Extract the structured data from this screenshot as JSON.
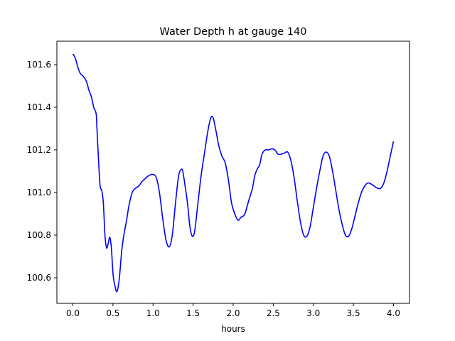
{
  "chart_data": {
    "type": "line",
    "title": "Water Depth h at gauge 140",
    "xlabel": "hours",
    "ylabel": "",
    "xlim": [
      -0.2,
      4.2
    ],
    "ylim": [
      100.48,
      101.71
    ],
    "xticks": [
      0.0,
      0.5,
      1.0,
      1.5,
      2.0,
      2.5,
      3.0,
      3.5,
      4.0
    ],
    "xtick_labels": [
      "0.0",
      "0.5",
      "1.0",
      "1.5",
      "2.0",
      "2.5",
      "3.0",
      "3.5",
      "4.0"
    ],
    "yticks": [
      100.6,
      100.8,
      101.0,
      101.2,
      101.4,
      101.6
    ],
    "ytick_labels": [
      "100.6",
      "100.8",
      "101.0",
      "101.2",
      "101.4",
      "101.6"
    ],
    "grid": false,
    "series": [
      {
        "color": "#0000ff",
        "x": [
          0.0,
          0.03,
          0.06,
          0.09,
          0.13,
          0.17,
          0.2,
          0.23,
          0.26,
          0.29,
          0.3,
          0.32,
          0.34,
          0.36,
          0.38,
          0.4,
          0.42,
          0.44,
          0.46,
          0.48,
          0.5,
          0.52,
          0.55,
          0.58,
          0.61,
          0.64,
          0.67,
          0.7,
          0.74,
          0.78,
          0.82,
          0.86,
          0.9,
          0.95,
          1.0,
          1.04,
          1.08,
          1.12,
          1.16,
          1.2,
          1.24,
          1.28,
          1.32,
          1.36,
          1.38,
          1.4,
          1.43,
          1.46,
          1.49,
          1.52,
          1.56,
          1.6,
          1.64,
          1.68,
          1.72,
          1.75,
          1.78,
          1.82,
          1.86,
          1.9,
          1.94,
          1.98,
          2.02,
          2.06,
          2.1,
          2.14,
          2.17,
          2.2,
          2.24,
          2.27,
          2.3,
          2.33,
          2.36,
          2.4,
          2.44,
          2.48,
          2.52,
          2.56,
          2.6,
          2.64,
          2.68,
          2.72,
          2.76,
          2.8,
          2.84,
          2.88,
          2.92,
          2.96,
          3.0,
          3.04,
          3.08,
          3.12,
          3.16,
          3.2,
          3.24,
          3.28,
          3.32,
          3.36,
          3.4,
          3.44,
          3.48,
          3.52,
          3.56,
          3.6,
          3.64,
          3.68,
          3.72,
          3.76,
          3.8,
          3.84,
          3.88,
          3.92,
          3.96,
          4.0
        ],
        "y": [
          101.65,
          101.63,
          101.59,
          101.56,
          101.545,
          101.52,
          101.48,
          101.45,
          101.4,
          101.37,
          101.3,
          101.15,
          101.03,
          101.01,
          100.95,
          100.8,
          100.74,
          100.76,
          100.79,
          100.74,
          100.62,
          100.57,
          100.535,
          100.6,
          100.73,
          100.81,
          100.87,
          100.94,
          101.0,
          101.02,
          101.03,
          101.05,
          101.065,
          101.08,
          101.085,
          101.07,
          101.0,
          100.88,
          100.78,
          100.745,
          100.8,
          100.95,
          101.08,
          101.11,
          101.08,
          101.03,
          100.95,
          100.84,
          100.795,
          100.82,
          100.95,
          101.08,
          101.18,
          101.28,
          101.35,
          101.35,
          101.3,
          101.22,
          101.17,
          101.14,
          101.06,
          100.95,
          100.9,
          100.87,
          100.885,
          100.895,
          100.93,
          100.97,
          101.02,
          101.08,
          101.11,
          101.13,
          101.18,
          101.2,
          101.2,
          101.205,
          101.2,
          101.18,
          101.18,
          101.185,
          101.19,
          101.15,
          101.07,
          100.96,
          100.86,
          100.8,
          100.795,
          100.84,
          100.93,
          101.02,
          101.1,
          101.17,
          101.19,
          101.17,
          101.1,
          101.01,
          100.92,
          100.85,
          100.8,
          100.795,
          100.83,
          100.89,
          100.95,
          101.0,
          101.03,
          101.045,
          101.04,
          101.03,
          101.02,
          101.02,
          101.045,
          101.1,
          101.17,
          101.24
        ]
      }
    ]
  }
}
